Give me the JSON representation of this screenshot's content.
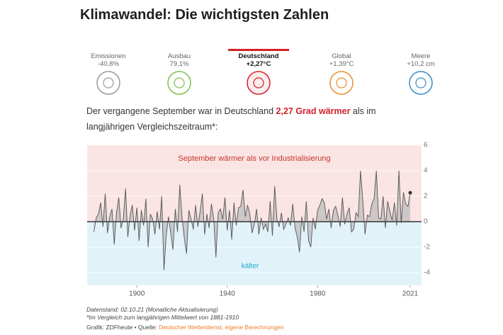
{
  "header": {
    "title": "Klimawandel: Die wichtigsten Zahlen"
  },
  "tabs": [
    {
      "label": "Emissionen",
      "value": "-40,8%"
    },
    {
      "label": "Ausbau",
      "value": "79,1%"
    },
    {
      "label": "Deutschland",
      "value": "+2,27°C"
    },
    {
      "label": "Global",
      "value": "+1,39°C"
    },
    {
      "label": "Meere",
      "value": "+10,2 cm"
    }
  ],
  "intro": {
    "before": "Der vergangene September war in Deutschland ",
    "highlight": "2,27 Grad wärmer",
    "after": " als im langjährigen Vergleichszeitraum*:"
  },
  "chart_data": {
    "type": "line",
    "annotations": {
      "above": "September wärmer als vor Industrialisierung",
      "below": "kälter"
    },
    "x": [
      1881,
      1882,
      1883,
      1884,
      1885,
      1886,
      1887,
      1888,
      1889,
      1890,
      1891,
      1892,
      1893,
      1894,
      1895,
      1896,
      1897,
      1898,
      1899,
      1900,
      1901,
      1902,
      1903,
      1904,
      1905,
      1906,
      1907,
      1908,
      1909,
      1910,
      1911,
      1912,
      1913,
      1914,
      1915,
      1916,
      1917,
      1918,
      1919,
      1920,
      1921,
      1922,
      1923,
      1924,
      1925,
      1926,
      1927,
      1928,
      1929,
      1930,
      1931,
      1932,
      1933,
      1934,
      1935,
      1936,
      1937,
      1938,
      1939,
      1940,
      1941,
      1942,
      1943,
      1944,
      1945,
      1946,
      1947,
      1948,
      1949,
      1950,
      1951,
      1952,
      1953,
      1954,
      1955,
      1956,
      1957,
      1958,
      1959,
      1960,
      1961,
      1962,
      1963,
      1964,
      1965,
      1966,
      1967,
      1968,
      1969,
      1970,
      1971,
      1972,
      1973,
      1974,
      1975,
      1976,
      1977,
      1978,
      1979,
      1980,
      1981,
      1982,
      1983,
      1984,
      1985,
      1986,
      1987,
      1988,
      1989,
      1990,
      1991,
      1992,
      1993,
      1994,
      1995,
      1996,
      1997,
      1998,
      1999,
      2000,
      2001,
      2002,
      2003,
      2004,
      2005,
      2006,
      2007,
      2008,
      2009,
      2010,
      2011,
      2012,
      2013,
      2014,
      2015,
      2016,
      2017,
      2018,
      2019,
      2020,
      2021
    ],
    "series": [
      {
        "color": "#555555",
        "values": [
          -0.8,
          0.3,
          0.6,
          1.5,
          -0.4,
          2.2,
          -0.9,
          0.4,
          1.0,
          -1.8,
          0.7,
          1.9,
          -0.5,
          0.2,
          2.6,
          -1.2,
          0.5,
          1.3,
          -0.7,
          1.1,
          -1.5,
          0.9,
          -0.3,
          1.8,
          -2.0,
          0.6,
          0.2,
          -1.0,
          0.8,
          -0.6,
          2.0,
          -3.8,
          -1.1,
          0.4,
          -0.9,
          -2.2,
          1.0,
          -0.8,
          2.9,
          0.3,
          -1.3,
          -2.5,
          0.9,
          0.2,
          -0.6,
          1.3,
          -0.4,
          0.8,
          2.2,
          -1.0,
          0.6,
          -0.5,
          1.4,
          0.3,
          -2.8,
          0.7,
          1.0,
          0.2,
          1.9,
          -0.7,
          0.9,
          -1.4,
          1.5,
          -0.3,
          1.1,
          1.2,
          2.5,
          0.4,
          1.3,
          0.6,
          -0.9,
          -0.2,
          1.0,
          -1.0,
          0.3,
          -0.6,
          -0.2,
          -0.8,
          1.6,
          -1.1,
          2.8,
          0.2,
          -0.4,
          0.7,
          -0.6,
          -0.2,
          0.3,
          -0.3,
          1.4,
          -0.5,
          -1.2,
          -2.4,
          0.4,
          -0.8,
          1.6,
          -1.5,
          -2.0,
          0.3,
          -0.6,
          0.9,
          1.3,
          1.8,
          1.5,
          0.2,
          1.0,
          -0.5,
          0.9,
          1.2,
          0.5,
          -0.4,
          1.9,
          -0.2,
          0.6,
          1.1,
          -0.8,
          -0.6,
          0.7,
          0.4,
          4.0,
          1.7,
          -1.0,
          0.5,
          0.4,
          1.4,
          1.8,
          4.0,
          0.3,
          0.2,
          2.0,
          -0.5,
          1.6,
          0.8,
          0.1,
          1.5,
          -0.3,
          4.0,
          -0.1,
          2.3,
          1.4,
          1.2,
          2.27
        ]
      }
    ],
    "xlim": [
      1878,
      2026
    ],
    "xticks": [
      1900,
      1940,
      1980,
      2021
    ],
    "ylim": [
      -5,
      6
    ],
    "yticks": [
      -4,
      -2,
      0,
      2,
      4,
      6
    ],
    "grid": true,
    "colors": {
      "above": "#fbe4e4",
      "below": "#e1f3f9",
      "area": "#bdbdbd"
    }
  },
  "footer": {
    "stand": "Datenstand: 02.10.21 (Monatliche Aktualisierung)",
    "note": "*Im Vergleich zum langjährigen Mittelwert von 1881-1910",
    "credit": "Grafik: ZDFheute • Quelle: ",
    "source": "Deutscher Wetterdienst, eigene Berechnungen"
  }
}
